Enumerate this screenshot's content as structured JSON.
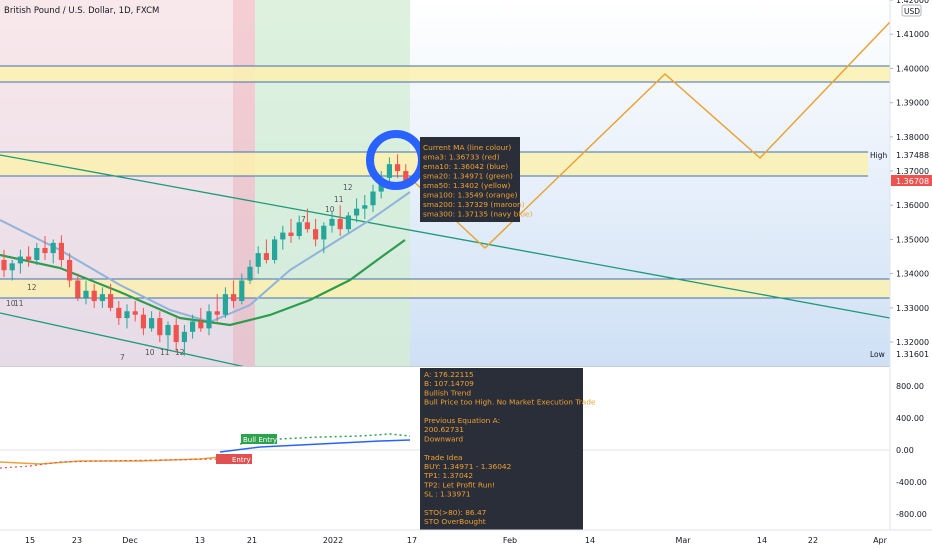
{
  "header": {
    "title": "British Pound / U.S. Dollar, 1D, FXCM",
    "currency": "USD"
  },
  "price_axis": {
    "lim": [
      1.313,
      1.42
    ],
    "ticks": [
      {
        "value": 1.42,
        "label": "1.42000"
      },
      {
        "value": 1.41,
        "label": "1.41000"
      },
      {
        "value": 1.4,
        "label": "1.40000"
      },
      {
        "value": 1.39,
        "label": "1.39000"
      },
      {
        "value": 1.38,
        "label": "1.38000"
      },
      {
        "value": 1.37,
        "label": "1.37000"
      },
      {
        "value": 1.36,
        "label": "1.36000"
      },
      {
        "value": 1.35,
        "label": "1.35000"
      },
      {
        "value": 1.34,
        "label": "1.34000"
      },
      {
        "value": 1.33,
        "label": "1.33000"
      },
      {
        "value": 1.32,
        "label": "1.32000"
      }
    ]
  },
  "price_tags": {
    "high_label": "High",
    "high": "1.37488",
    "last": "1.36708",
    "low_label": "Low",
    "low": "1.31601"
  },
  "candles": [
    [
      1.344,
      1.347,
      1.339,
      1.341
    ],
    [
      1.341,
      1.344,
      1.338,
      1.343
    ],
    [
      1.343,
      1.347,
      1.34,
      1.345
    ],
    [
      1.345,
      1.348,
      1.342,
      1.344
    ],
    [
      1.344,
      1.349,
      1.3425,
      1.3475
    ],
    [
      1.3475,
      1.351,
      1.344,
      1.346
    ],
    [
      1.346,
      1.35,
      1.343,
      1.349
    ],
    [
      1.349,
      1.3512,
      1.342,
      1.344
    ],
    [
      1.344,
      1.346,
      1.336,
      1.338
    ],
    [
      1.338,
      1.34,
      1.332,
      1.333
    ],
    [
      1.333,
      1.338,
      1.331,
      1.335
    ],
    [
      1.335,
      1.337,
      1.33,
      1.332
    ],
    [
      1.332,
      1.336,
      1.33,
      1.334
    ],
    [
      1.334,
      1.337,
      1.329,
      1.33
    ],
    [
      1.33,
      1.332,
      1.325,
      1.327
    ],
    [
      1.327,
      1.331,
      1.324,
      1.329
    ],
    [
      1.329,
      1.332,
      1.326,
      1.328
    ],
    [
      1.328,
      1.33,
      1.322,
      1.324
    ],
    [
      1.324,
      1.329,
      1.323,
      1.327
    ],
    [
      1.327,
      1.329,
      1.32,
      1.322
    ],
    [
      1.322,
      1.326,
      1.318,
      1.325
    ],
    [
      1.325,
      1.327,
      1.317,
      1.32
    ],
    [
      1.32,
      1.325,
      1.316,
      1.323
    ],
    [
      1.323,
      1.328,
      1.321,
      1.326
    ],
    [
      1.326,
      1.33,
      1.323,
      1.324
    ],
    [
      1.324,
      1.331,
      1.322,
      1.329
    ],
    [
      1.329,
      1.334,
      1.326,
      1.328
    ],
    [
      1.328,
      1.336,
      1.327,
      1.334
    ],
    [
      1.334,
      1.338,
      1.33,
      1.332
    ],
    [
      1.332,
      1.34,
      1.331,
      1.338
    ],
    [
      1.338,
      1.344,
      1.337,
      1.342
    ],
    [
      1.342,
      1.348,
      1.34,
      1.346
    ],
    [
      1.346,
      1.35,
      1.343,
      1.344
    ],
    [
      1.344,
      1.351,
      1.343,
      1.35
    ],
    [
      1.35,
      1.354,
      1.347,
      1.352
    ],
    [
      1.352,
      1.356,
      1.349,
      1.351
    ],
    [
      1.351,
      1.357,
      1.35,
      1.355
    ],
    [
      1.355,
      1.359,
      1.352,
      1.353
    ],
    [
      1.353,
      1.356,
      1.348,
      1.35
    ],
    [
      1.35,
      1.355,
      1.346,
      1.354
    ],
    [
      1.354,
      1.358,
      1.352,
      1.356
    ],
    [
      1.356,
      1.36,
      1.351,
      1.353
    ],
    [
      1.353,
      1.358,
      1.352,
      1.357
    ],
    [
      1.357,
      1.362,
      1.355,
      1.359
    ],
    [
      1.359,
      1.363,
      1.356,
      1.36
    ],
    [
      1.36,
      1.366,
      1.358,
      1.364
    ],
    [
      1.364,
      1.37,
      1.362,
      1.368
    ],
    [
      1.368,
      1.374,
      1.366,
      1.372
    ],
    [
      1.372,
      1.3749,
      1.368,
      1.37
    ],
    [
      1.37,
      1.372,
      1.365,
      1.3671
    ]
  ],
  "annotations": [
    "12",
    "11",
    "10",
    "7",
    "12",
    "10",
    "11",
    "7",
    "10",
    "11",
    "12"
  ],
  "signals": {
    "bull_entry": "Bull Entry",
    "sell_entry": "Entry"
  },
  "ma_tooltip": [
    "Current MA (line colour)",
    "ema3: 1.36733 (red)",
    "ema10: 1.36042 (blue)",
    "sma20: 1.34971 (green)",
    "sma50: 1.3402 (yellow)",
    "sma100: 1.3549 (orange)",
    "sma200: 1.37329 (maroon)",
    "sma300: 1.37135 (navy blue)"
  ],
  "trade_tooltip": [
    "A: 176.22115",
    "B: 107.14709",
    "Bullish Trend",
    "Bull Price too High. No Market Execution Trade",
    "",
    "Previous Equation A:",
    "200.62731",
    "Downward",
    "",
    "Trade Idea",
    "BUY: 1.34971 - 1.36042",
    "TP1: 1.37042",
    "TP2: Let Profit Run!",
    "SL  : 1.33971",
    "",
    "STO(>80): 86.47",
    "STO OverBought"
  ],
  "oscillator_axis": [
    "800.00",
    "400.00",
    "0.00",
    "-400.00",
    "-800.00"
  ],
  "date_axis": [
    "15",
    "23",
    "Dec",
    "13",
    "21",
    "2022",
    "17",
    "Feb",
    "14",
    "Mar",
    "14",
    "22",
    "Apr"
  ]
}
